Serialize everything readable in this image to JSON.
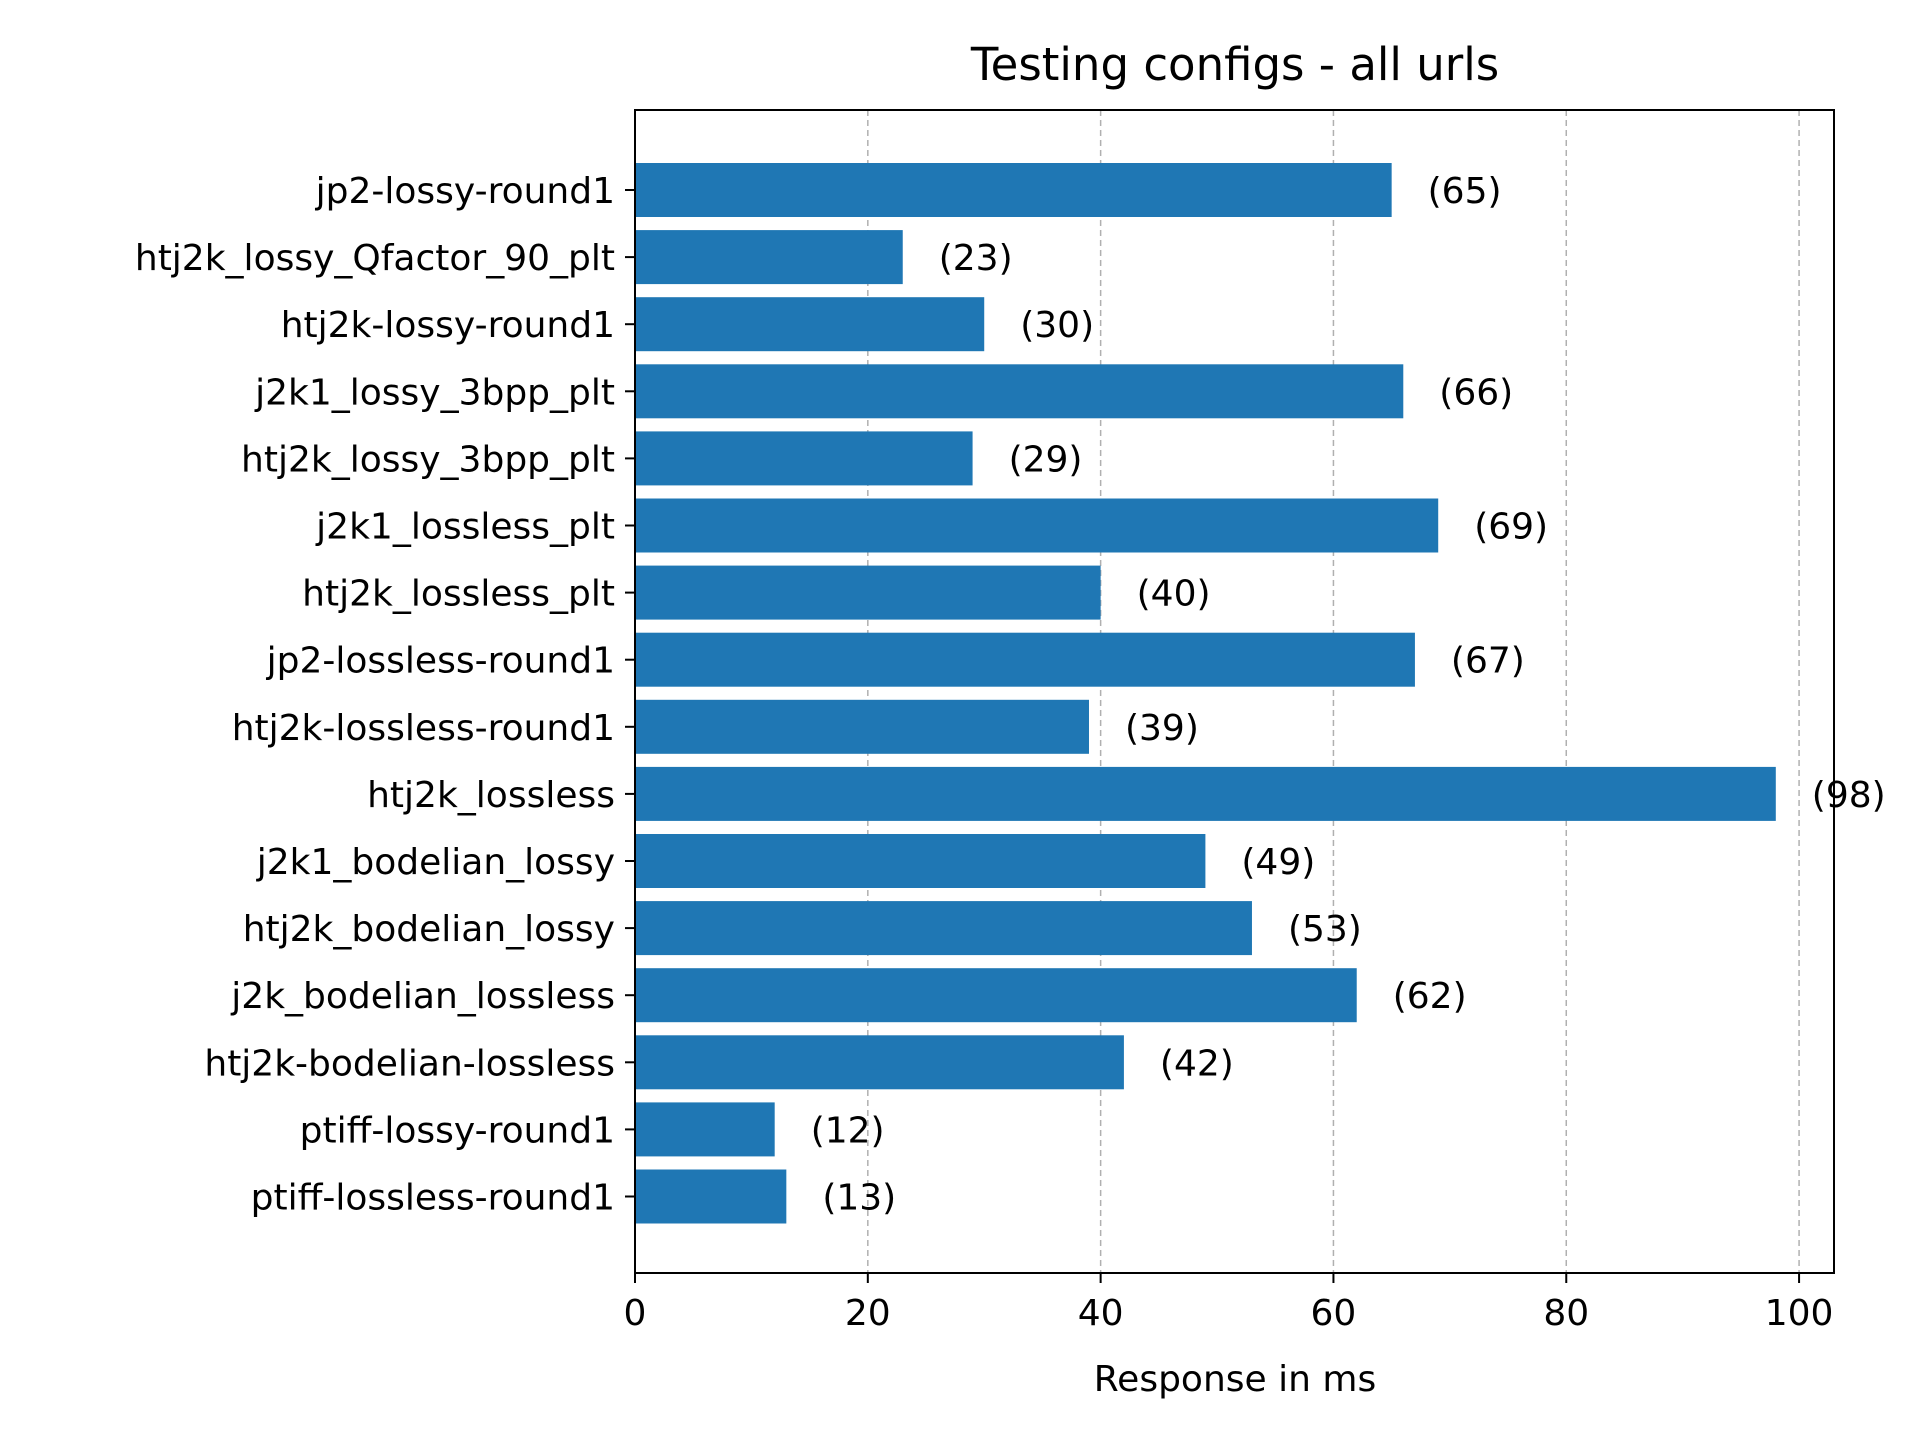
{
  "chart_data": {
    "type": "bar",
    "orientation": "horizontal",
    "title": "Testing configs - all urls",
    "xlabel": "Response in ms",
    "ylabel": "",
    "xlim": [
      0,
      103
    ],
    "xticks": [
      0,
      20,
      40,
      60,
      80,
      100
    ],
    "grid": "x-dashed",
    "color": "#1f77b4",
    "categories": [
      "jp2-lossy-round1",
      "htj2k_lossy_Qfactor_90_plt",
      "htj2k-lossy-round1",
      "j2k1_lossy_3bpp_plt",
      "htj2k_lossy_3bpp_plt",
      "j2k1_lossless_plt",
      "htj2k_lossless_plt",
      "jp2-lossless-round1",
      "htj2k-lossless-round1",
      "htj2k_lossless",
      "j2k1_bodelian_lossy",
      "htj2k_bodelian_lossy",
      "j2k_bodelian_lossless",
      "htj2k-bodelian-lossless",
      "ptiff-lossy-round1",
      "ptiff-lossless-round1"
    ],
    "values": [
      65,
      23,
      30,
      66,
      29,
      69,
      40,
      67,
      39,
      98,
      49,
      53,
      62,
      42,
      12,
      13
    ],
    "value_labels": [
      "(65)",
      "(23)",
      "(30)",
      "(66)",
      "(29)",
      "(69)",
      "(40)",
      "(67)",
      "(39)",
      "(98)",
      "(49)",
      "(53)",
      "(62)",
      "(42)",
      "(12)",
      "(13)"
    ]
  }
}
